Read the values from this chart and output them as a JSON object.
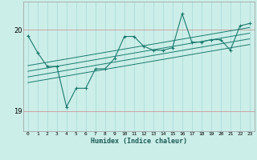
{
  "title": "",
  "xlabel": "Humidex (Indice chaleur)",
  "bg_color": "#cceee8",
  "line_color": "#1a7a6e",
  "grid_color_v": "#aaddda",
  "grid_color_h": "#cc9999",
  "xlim": [
    -0.5,
    23.5
  ],
  "ylim": [
    18.75,
    20.35
  ],
  "xticks": [
    0,
    1,
    2,
    3,
    4,
    5,
    6,
    7,
    8,
    9,
    10,
    11,
    12,
    13,
    14,
    15,
    16,
    17,
    18,
    19,
    20,
    21,
    22,
    23
  ],
  "yticks": [
    19.0,
    20.0
  ],
  "main_data_x": [
    0,
    1,
    2,
    3,
    4,
    5,
    6,
    7,
    8,
    9,
    10,
    11,
    12,
    13,
    14,
    15,
    16,
    17,
    18,
    19,
    20,
    21,
    22,
    23
  ],
  "main_data_y": [
    19.93,
    19.72,
    19.55,
    19.55,
    19.05,
    19.28,
    19.28,
    19.52,
    19.52,
    19.65,
    19.92,
    19.92,
    19.8,
    19.75,
    19.75,
    19.78,
    20.2,
    19.85,
    19.85,
    19.88,
    19.88,
    19.75,
    20.05,
    20.08
  ],
  "trend_lines": [
    {
      "x": [
        0,
        23
      ],
      "y": [
        19.35,
        19.82
      ]
    },
    {
      "x": [
        0,
        23
      ],
      "y": [
        19.42,
        19.89
      ]
    },
    {
      "x": [
        0,
        23
      ],
      "y": [
        19.49,
        19.96
      ]
    },
    {
      "x": [
        0,
        23
      ],
      "y": [
        19.56,
        20.03
      ]
    }
  ]
}
